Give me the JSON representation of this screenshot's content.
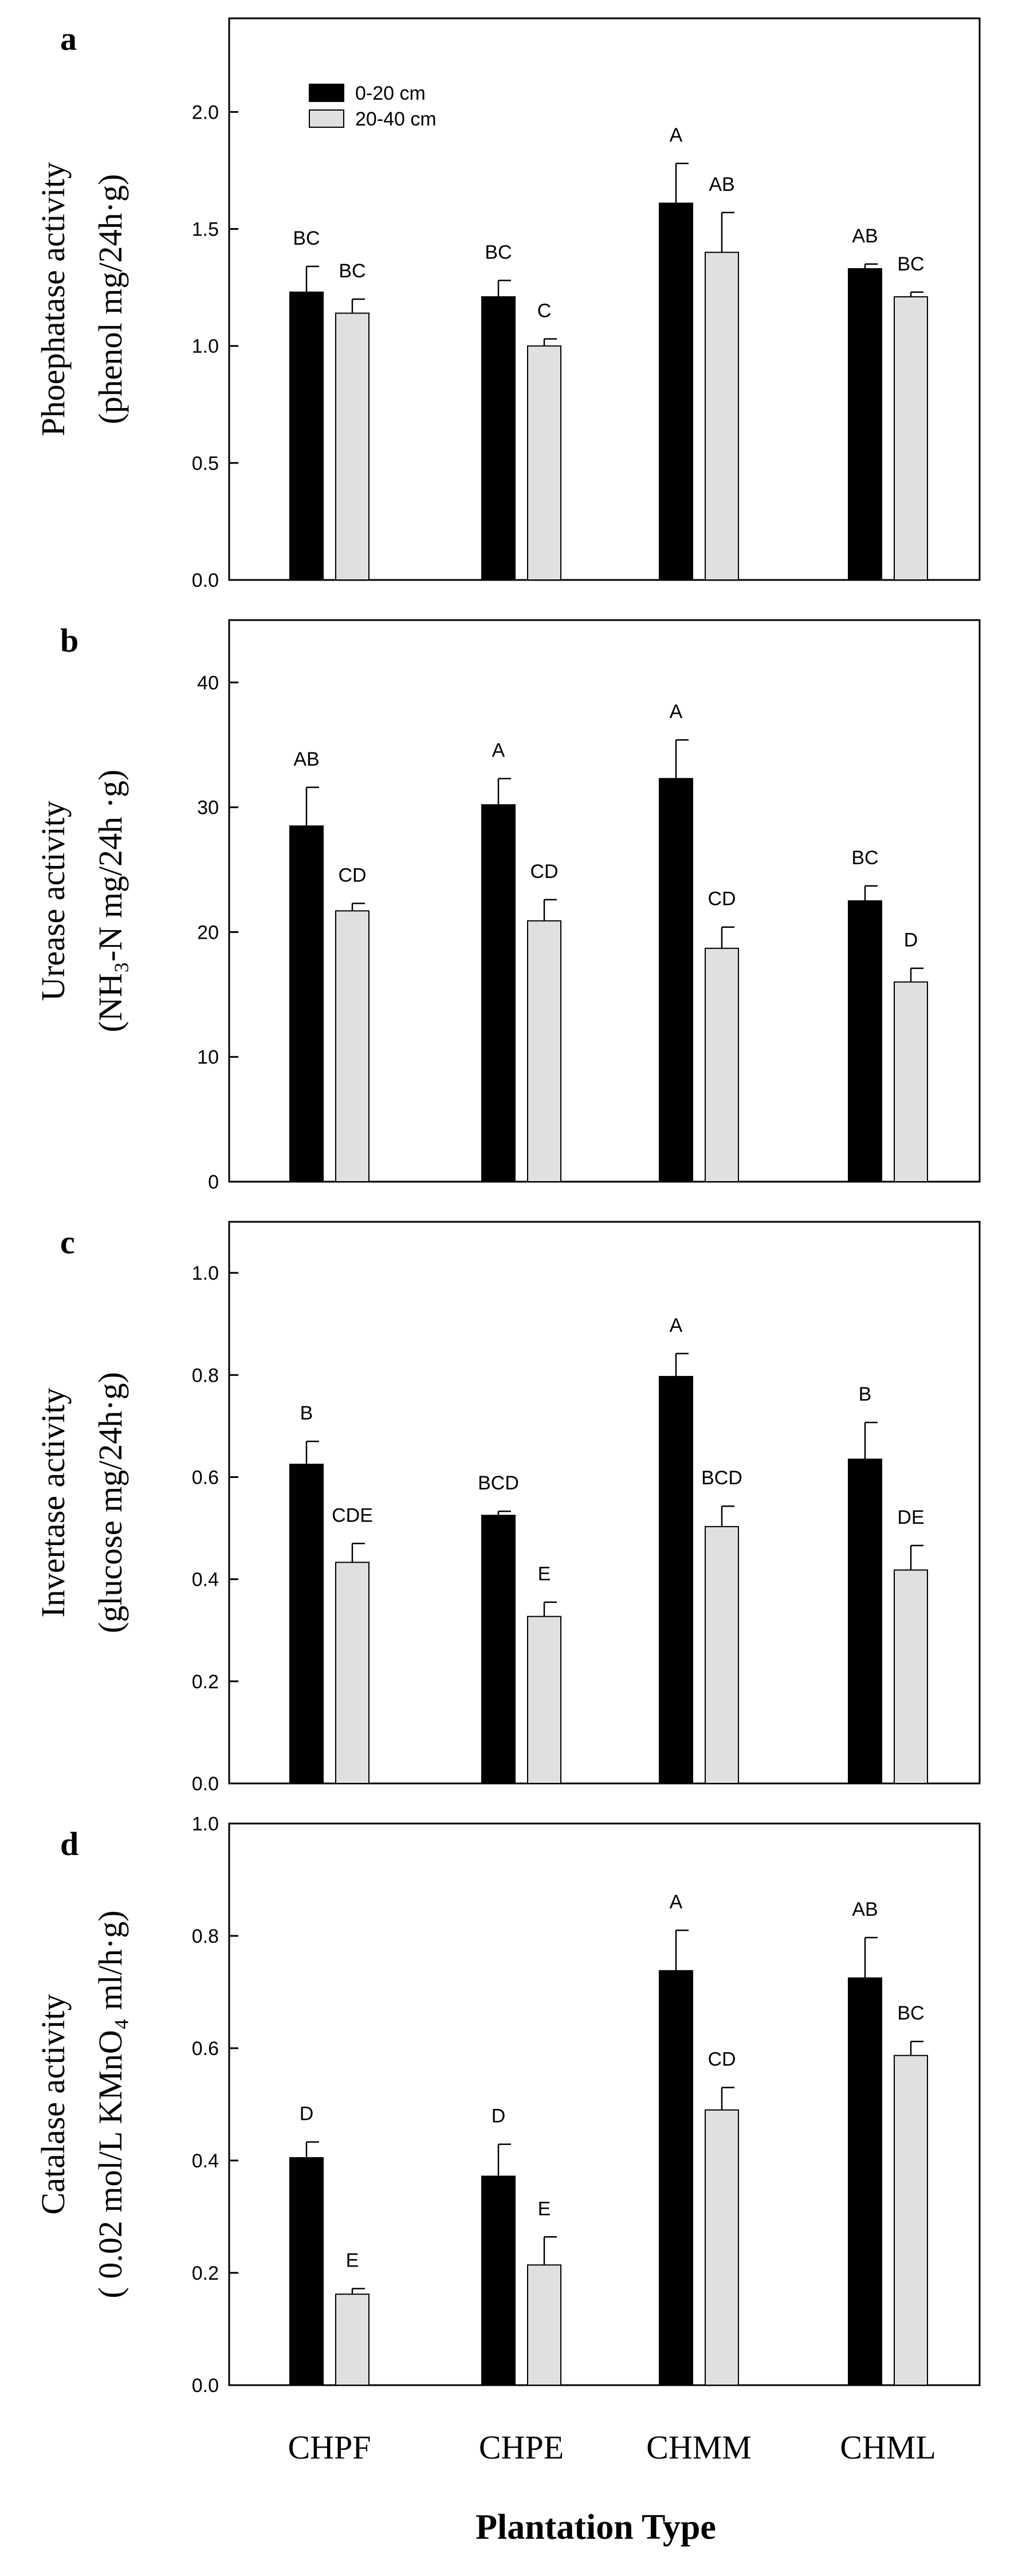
{
  "figure": {
    "categories": [
      "CHPF",
      "CHPE",
      "CHMM",
      "CHML"
    ],
    "xlabel": "Plantation Type",
    "legend": {
      "series1": "0-20 cm",
      "series2": "20-40 cm",
      "color1": "#000000",
      "color2": "#e0e0e0"
    }
  },
  "chart_data": [
    {
      "type": "bar",
      "panel": "a",
      "ylabel_line1": "Phoephatase activity",
      "ylabel_line2": "(phenol mg/24h·g)",
      "ylim": [
        0,
        2.4
      ],
      "yticks": [
        0.0,
        0.5,
        1.0,
        1.5,
        2.0
      ],
      "ytick_labels": [
        "0.0",
        "0.5",
        "1.0",
        "1.5",
        "2.0"
      ],
      "legend_position": "top-left",
      "series": [
        {
          "name": "0-20 cm",
          "values": [
            1.23,
            1.21,
            1.61,
            1.33
          ],
          "errors": [
            0.11,
            0.07,
            0.17,
            0.02
          ],
          "letters": [
            "BC",
            "BC",
            "A",
            "AB"
          ]
        },
        {
          "name": "20-40 cm",
          "values": [
            1.14,
            1.0,
            1.4,
            1.21
          ],
          "errors": [
            0.06,
            0.03,
            0.17,
            0.02
          ],
          "letters": [
            "BC",
            "C",
            "AB",
            "BC"
          ]
        }
      ]
    },
    {
      "type": "bar",
      "panel": "b",
      "ylabel_line1": "Urease activity",
      "ylabel_line2": "(NH₃-N mg/24h ·g)",
      "ylim": [
        0,
        45
      ],
      "yticks": [
        0,
        10,
        20,
        30,
        40
      ],
      "ytick_labels": [
        "0",
        "10",
        "20",
        "30",
        "40"
      ],
      "series": [
        {
          "name": "0-20 cm",
          "values": [
            28.5,
            30.2,
            32.3,
            22.5
          ],
          "errors": [
            3.1,
            2.1,
            3.1,
            1.2
          ],
          "letters": [
            "AB",
            "A",
            "A",
            "BC"
          ]
        },
        {
          "name": "20-40 cm",
          "values": [
            21.7,
            20.9,
            18.7,
            16.0
          ],
          "errors": [
            0.6,
            1.7,
            1.7,
            1.1
          ],
          "letters": [
            "CD",
            "CD",
            "CD",
            "D"
          ]
        }
      ]
    },
    {
      "type": "bar",
      "panel": "c",
      "ylabel_line1": "Invertase activity",
      "ylabel_line2": "(glucose mg/24h·g)",
      "ylim": [
        0,
        1.1
      ],
      "yticks": [
        0.0,
        0.2,
        0.4,
        0.6,
        0.8,
        1.0
      ],
      "ytick_labels": [
        "0.0",
        "0.2",
        "0.4",
        "0.6",
        "0.8",
        "1.0"
      ],
      "series": [
        {
          "name": "0-20 cm",
          "values": [
            0.625,
            0.525,
            0.797,
            0.635
          ],
          "errors": [
            0.045,
            0.008,
            0.045,
            0.072
          ],
          "letters": [
            "B",
            "BCD",
            "A",
            "B"
          ]
        },
        {
          "name": "20-40 cm",
          "values": [
            0.433,
            0.327,
            0.503,
            0.418
          ],
          "errors": [
            0.037,
            0.028,
            0.04,
            0.048
          ],
          "letters": [
            "CDE",
            "E",
            "BCD",
            "DE"
          ]
        }
      ]
    },
    {
      "type": "bar",
      "panel": "d",
      "ylabel_line1": "Catalase activity",
      "ylabel_line2": "( 0.02 mol/L KMnO₄ ml/h·g)",
      "ylim": [
        0,
        1.0
      ],
      "yticks": [
        0.0,
        0.2,
        0.4,
        0.6,
        0.8,
        1.0
      ],
      "ytick_labels": [
        "0.0",
        "0.2",
        "0.4",
        "0.6",
        "0.8",
        "1.0"
      ],
      "series": [
        {
          "name": "0-20 cm",
          "values": [
            0.405,
            0.372,
            0.738,
            0.725
          ],
          "errors": [
            0.028,
            0.057,
            0.072,
            0.072
          ],
          "letters": [
            "D",
            "D",
            "A",
            "AB"
          ]
        },
        {
          "name": "20-40 cm",
          "values": [
            0.162,
            0.214,
            0.49,
            0.587
          ],
          "errors": [
            0.01,
            0.05,
            0.04,
            0.025
          ],
          "letters": [
            "E",
            "E",
            "CD",
            "BC"
          ]
        }
      ]
    }
  ]
}
